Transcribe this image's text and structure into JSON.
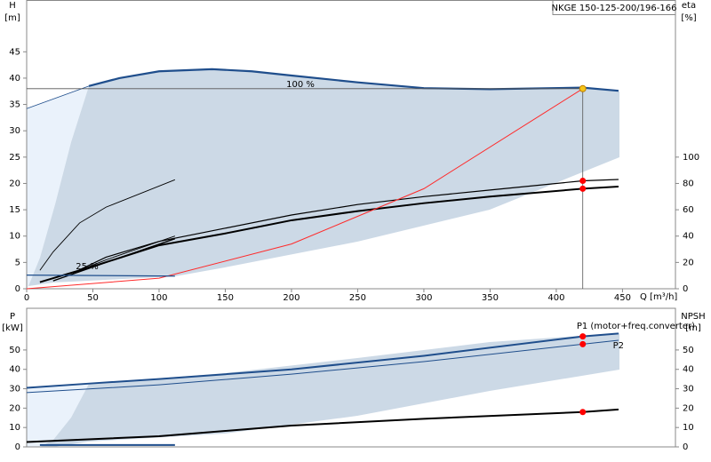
{
  "chart_data": [
    {
      "type": "line",
      "title": "NKGE 150-125-200/196-166",
      "ylabel": "H",
      "yunit": "[m]",
      "y2label": "eta",
      "y2unit": "[%]",
      "xlabel": "Q [m³/h]",
      "xlim": [
        0,
        490
      ],
      "xticks": [
        0,
        50,
        100,
        150,
        200,
        250,
        300,
        350,
        400,
        450
      ],
      "ylim": [
        0,
        54.5
      ],
      "yticks": [
        0,
        5,
        10,
        15,
        20,
        25,
        30,
        35,
        40,
        45
      ],
      "y2lim": [
        0,
        218
      ],
      "y2ticks": [
        0,
        20,
        40,
        60,
        80,
        100
      ],
      "annotations": [
        "100 %",
        "25 %"
      ],
      "series": [
        {
          "color": "#1f4e8c",
          "width": 2.2,
          "x": [
            47,
            70,
            100,
            140,
            170,
            200,
            250,
            300,
            350,
            420,
            447
          ],
          "values": [
            38.5,
            40,
            41.3,
            41.7,
            41.3,
            40.5,
            39.2,
            38.1,
            37.9,
            38.2,
            37.6
          ]
        },
        {
          "color": "#1f4e8c",
          "width": 0.8,
          "x": [
            0,
            47
          ],
          "values": [
            34.2,
            38.5
          ]
        },
        {
          "color": "#000000",
          "width": 2,
          "axis": "y2",
          "x": [
            10,
            50,
            100,
            150,
            200,
            250,
            300,
            350,
            420,
            447
          ],
          "values": [
            5,
            17,
            33,
            42,
            52,
            59,
            65,
            70,
            76,
            77.6
          ]
        },
        {
          "color": "#000000",
          "width": 1.2,
          "axis": "y2",
          "x": [
            35,
            60,
            100,
            150,
            200,
            250,
            300,
            350,
            420,
            447
          ],
          "values": [
            12,
            24,
            36,
            46,
            56,
            64,
            70,
            75,
            82,
            83
          ]
        },
        {
          "color": "#ff2a2a",
          "width": 1,
          "x": [
            0,
            100,
            200,
            300,
            420
          ],
          "values": [
            0,
            2,
            8.5,
            19,
            38
          ]
        },
        {
          "color": "#000000",
          "width": 0.9,
          "x": [
            10,
            20,
            40,
            60,
            80,
            100,
            112
          ],
          "values": [
            3.5,
            7,
            12.5,
            15.5,
            17.5,
            19.5,
            20.7
          ]
        },
        {
          "color": "#000000",
          "width": 1.4,
          "axis": "y2",
          "x": [
            20,
            60,
            112
          ],
          "values": [
            6,
            20,
            38
          ]
        },
        {
          "color": "#000000",
          "width": 0.9,
          "axis": "y2",
          "x": [
            35,
            60,
            112
          ],
          "values": [
            12,
            22,
            40
          ]
        },
        {
          "color": "#1f4e8c",
          "width": 1.2,
          "x": [
            0,
            112
          ],
          "values": [
            2.6,
            2.4
          ]
        }
      ],
      "markers": [
        {
          "x": 420,
          "y": 38,
          "color": "#f5c518",
          "duty": true
        },
        {
          "x": 420,
          "y": 82,
          "color": "#ff0000",
          "axis": "y2"
        },
        {
          "x": 420,
          "y": 76,
          "color": "#ff0000",
          "axis": "y2"
        }
      ]
    },
    {
      "type": "line",
      "ylabel": "P",
      "yunit": "[kW]",
      "y2label": "NPSH",
      "y2unit": "[m]",
      "xlim": [
        0,
        490
      ],
      "ylim": [
        0,
        71.5
      ],
      "yticks": [
        0,
        10,
        20,
        30,
        40,
        50
      ],
      "y2lim": [
        0,
        71.5
      ],
      "y2ticks": [
        0,
        10,
        20,
        30,
        40,
        50
      ],
      "series": [
        {
          "name": "P1 (motor+freq.converter)",
          "color": "#1f4e8c",
          "width": 2,
          "x": [
            0,
            50,
            100,
            200,
            300,
            420,
            447
          ],
          "values": [
            30.5,
            32.8,
            35,
            40,
            47,
            57,
            58.5
          ]
        },
        {
          "name": "P2",
          "color": "#1f4e8c",
          "width": 1,
          "x": [
            0,
            100,
            200,
            300,
            420,
            447
          ],
          "values": [
            28,
            32,
            37.5,
            44,
            53,
            55
          ]
        },
        {
          "color": "#000000",
          "width": 2,
          "axis": "y2",
          "x": [
            0,
            100,
            200,
            300,
            420,
            447
          ],
          "values": [
            2.5,
            5.5,
            11,
            14.5,
            18,
            19.3
          ]
        },
        {
          "color": "#1f4e8c",
          "width": 2,
          "x": [
            10,
            112
          ],
          "values": [
            1,
            1
          ]
        }
      ],
      "markers": [
        {
          "x": 420,
          "y": 57,
          "color": "#ff0000"
        },
        {
          "x": 420,
          "y": 53,
          "color": "#ff0000"
        },
        {
          "x": 420,
          "y": 18,
          "color": "#ff0000",
          "axis": "y2"
        }
      ]
    }
  ]
}
